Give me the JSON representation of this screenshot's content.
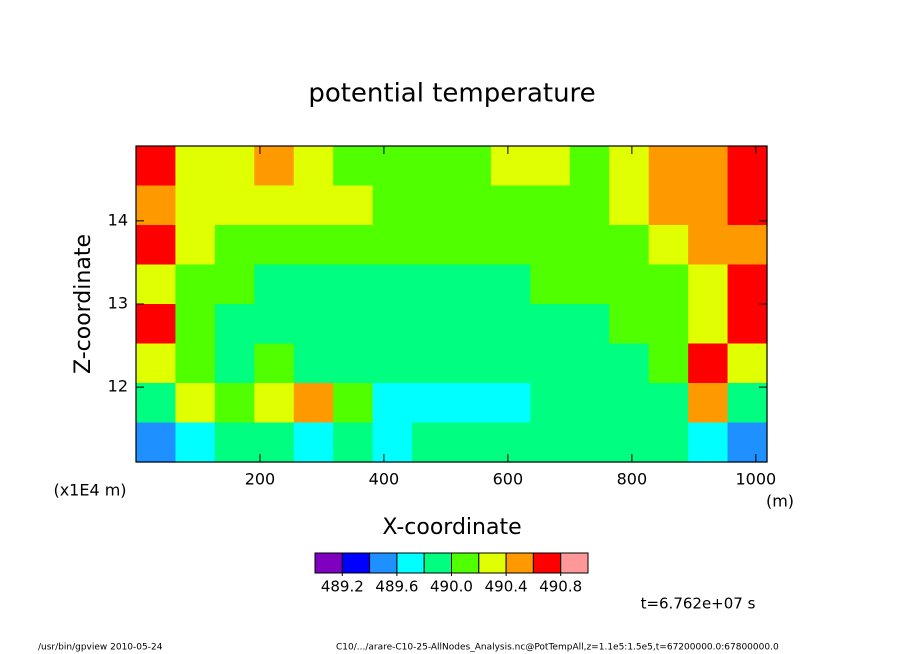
{
  "chart_data": {
    "type": "contour",
    "title": "potential temperature",
    "xlabel": "X-coordinate",
    "ylabel": "Z-coordinate",
    "x_unit": "(m)",
    "y_unit": "(x1E4 m)",
    "xlim": [
      0,
      1018
    ],
    "ylim": [
      11.1,
      14.9
    ],
    "xticks": [
      200,
      400,
      600,
      800,
      1000
    ],
    "yticks": [
      12,
      13,
      14
    ],
    "levels": [
      489.2,
      489.4,
      489.6,
      489.8,
      490.0,
      490.2,
      490.4,
      490.6,
      490.8
    ],
    "colors": [
      "#8000c0",
      "#0000ff",
      "#1e90ff",
      "#00ffff",
      "#00ff80",
      "#50ff00",
      "#e0ff00",
      "#ff9900",
      "#ff0000",
      "#ff9999"
    ],
    "colorbar_ticks": [
      489.2,
      489.6,
      {
        "value": 490.0,
        "label": "490.0"
      },
      490.4,
      490.8
    ],
    "z": [
      [
        490.7,
        490.3,
        490.3,
        490.5,
        490.3,
        490.1,
        490.1,
        490.1,
        490.1,
        490.3,
        490.3,
        490.1,
        490.3,
        490.5,
        490.5,
        490.7
      ],
      [
        490.5,
        490.3,
        490.3,
        490.3,
        490.3,
        490.3,
        490.1,
        490.1,
        490.1,
        490.1,
        490.1,
        490.1,
        490.3,
        490.5,
        490.5,
        490.7
      ],
      [
        490.7,
        490.3,
        490.1,
        490.1,
        490.1,
        490.1,
        490.1,
        490.1,
        490.1,
        490.1,
        490.1,
        490.1,
        490.1,
        490.3,
        490.5,
        490.5
      ],
      [
        490.3,
        490.1,
        490.1,
        489.9,
        489.9,
        489.9,
        489.9,
        489.9,
        489.9,
        489.9,
        490.1,
        490.1,
        490.1,
        490.1,
        490.3,
        490.7
      ],
      [
        490.7,
        490.1,
        489.9,
        489.9,
        489.9,
        489.9,
        489.9,
        489.9,
        489.9,
        489.9,
        489.9,
        489.9,
        490.1,
        490.1,
        490.3,
        490.7
      ],
      [
        490.3,
        490.1,
        489.9,
        490.1,
        489.9,
        489.9,
        489.9,
        489.9,
        489.9,
        489.9,
        489.9,
        489.9,
        489.9,
        490.1,
        490.7,
        490.3
      ],
      [
        489.9,
        490.3,
        490.1,
        490.3,
        490.5,
        490.1,
        489.7,
        489.7,
        489.7,
        489.7,
        489.9,
        489.9,
        489.9,
        489.9,
        490.5,
        489.9
      ],
      [
        489.5,
        489.7,
        489.9,
        489.9,
        489.7,
        489.9,
        489.7,
        489.9,
        489.9,
        489.9,
        489.9,
        489.9,
        489.9,
        489.9,
        489.7,
        489.5
      ]
    ],
    "time_label": "t=6.762e+07 s",
    "footer_left": "/usr/bin/gpview   2010-05-24",
    "footer_right": "C10/.../arare-C10-25-AllNodes_Analysis.nc@PotTempAll,z=1.1e5:1.5e5,t=67200000.0:67800000.0"
  }
}
